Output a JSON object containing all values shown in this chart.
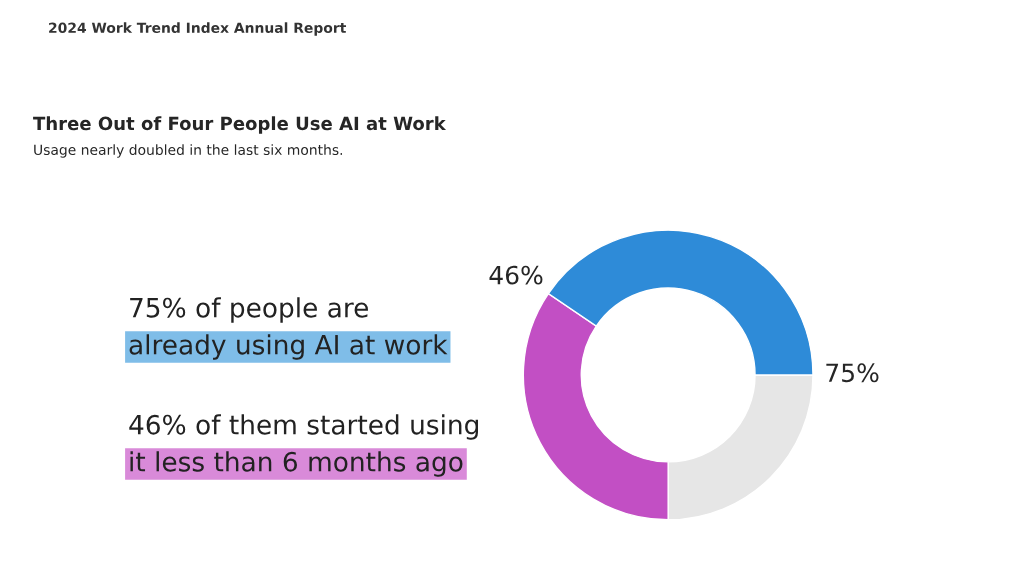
{
  "chart_data": {
    "type": "donut",
    "title": "Three Out of Four People Use AI at Work",
    "subtitle": "Usage nearly doubled in the last six months.",
    "categories": [
      null,
      null,
      null
    ],
    "values": [
      25,
      34.5,
      40.5
    ],
    "colors": [
      "#e6e6e6",
      "#c24fc4",
      "#2e8bd8"
    ],
    "annotations": [
      "2024 Work Trend Index Annual Report",
      "75% of people are",
      "already using AI at work",
      "46% of them started using",
      "it less than 6 months ago",
      "46%",
      "75%"
    ]
  }
}
